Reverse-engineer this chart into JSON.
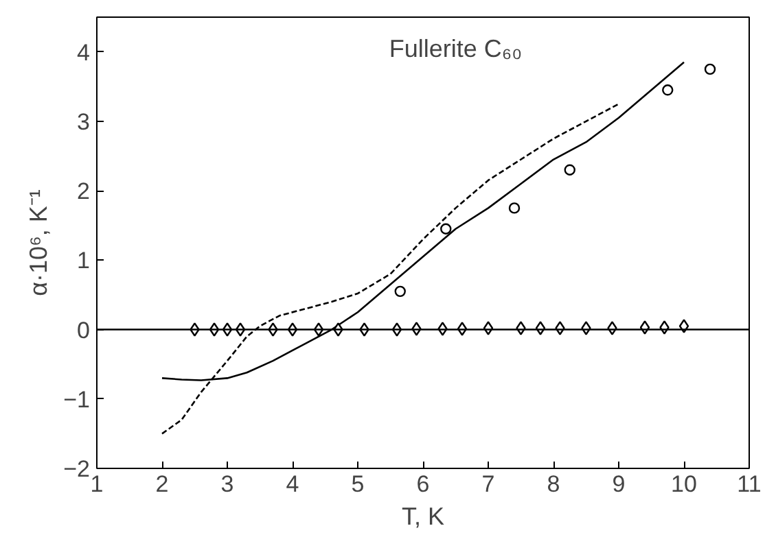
{
  "chart_data": {
    "type": "line",
    "xlabel": "T, K",
    "ylabel": "α·10⁶, K⁻¹",
    "annotations": [
      "Fullerite C₆₀"
    ],
    "xlim": [
      1,
      11
    ],
    "ylim": [
      -2,
      4.5
    ],
    "xticks": [
      1,
      2,
      3,
      4,
      5,
      6,
      7,
      8,
      9,
      10,
      11
    ],
    "yticks": [
      -2,
      -1,
      0,
      1,
      2,
      3,
      4
    ],
    "grid": false,
    "ref_lines": [
      {
        "axis": "y",
        "value": 0,
        "color": "#000000",
        "line_style": "solid"
      }
    ],
    "series": [
      {
        "line_style": "solid",
        "marker": "none",
        "color": "#000000",
        "x": [
          2,
          2.3,
          2.6,
          3,
          3.3,
          3.7,
          4.2,
          4.6,
          5,
          5.5,
          6,
          6.5,
          7,
          7.5,
          8,
          8.5,
          9,
          9.5,
          10
        ],
        "values": [
          -0.7,
          -0.72,
          -0.73,
          -0.7,
          -0.62,
          -0.45,
          -0.2,
          0.0,
          0.25,
          0.65,
          1.05,
          1.45,
          1.75,
          2.1,
          2.45,
          2.7,
          3.05,
          3.45,
          3.85
        ]
      },
      {
        "line_style": "dashed",
        "marker": "none",
        "color": "#000000",
        "x": [
          2,
          2.3,
          2.6,
          3,
          3.3,
          3.5,
          3.8,
          4.2,
          4.6,
          5,
          5.5,
          6,
          6.5,
          7,
          7.5,
          8,
          8.5,
          9
        ],
        "values": [
          -1.5,
          -1.3,
          -0.9,
          -0.45,
          -0.1,
          0.05,
          0.2,
          0.3,
          0.4,
          0.52,
          0.8,
          1.3,
          1.75,
          2.15,
          2.45,
          2.75,
          3.0,
          3.25
        ]
      },
      {
        "type": "scatter",
        "marker": "circle",
        "color": "#000000",
        "x": [
          5.65,
          6.35,
          7.4,
          8.25,
          9.75,
          10.4
        ],
        "values": [
          0.55,
          1.45,
          1.75,
          2.3,
          3.45,
          3.75
        ]
      },
      {
        "type": "scatter",
        "marker": "diamond",
        "color": "#000000",
        "x": [
          2.5,
          2.8,
          3.0,
          3.2,
          3.7,
          4.0,
          4.4,
          4.7,
          5.1,
          5.6,
          5.9,
          6.3,
          6.6,
          7.0,
          7.5,
          7.8,
          8.1,
          8.5,
          8.9,
          9.4,
          9.7,
          10.0
        ],
        "values": [
          0,
          0,
          0,
          0,
          0,
          0,
          0,
          0,
          0,
          0,
          0.01,
          0.01,
          0.01,
          0.02,
          0.02,
          0.02,
          0.02,
          0.02,
          0.02,
          0.03,
          0.03,
          0.05
        ]
      }
    ]
  }
}
